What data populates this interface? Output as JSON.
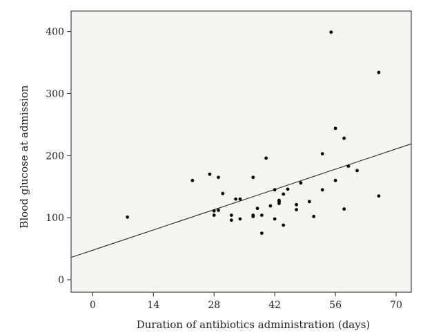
{
  "chart_data": {
    "type": "scatter",
    "title": "",
    "xlabel": "Duration of antibiotics administration (days)",
    "ylabel": "Blood glucose at admission",
    "xlim": [
      -5,
      73.5
    ],
    "ylim": [
      -20,
      433
    ],
    "x_ticks": [
      0,
      14,
      28,
      42,
      56,
      70
    ],
    "y_ticks": [
      0,
      100,
      200,
      300,
      400
    ],
    "grid": false,
    "legend": "none",
    "plot_background": "#f5f5f2",
    "point_color": "#000000",
    "series": [
      {
        "points": [
          [
            8,
            101
          ],
          [
            23,
            160
          ],
          [
            27,
            170
          ],
          [
            28,
            111
          ],
          [
            28,
            104
          ],
          [
            29,
            165
          ],
          [
            29,
            112
          ],
          [
            30,
            139
          ],
          [
            32,
            104
          ],
          [
            32,
            96
          ],
          [
            33,
            130
          ],
          [
            34,
            130
          ],
          [
            34,
            98
          ],
          [
            37,
            165
          ],
          [
            37,
            104
          ],
          [
            37,
            102
          ],
          [
            38,
            115
          ],
          [
            39,
            104
          ],
          [
            39,
            75
          ],
          [
            40,
            196
          ],
          [
            41,
            119
          ],
          [
            42,
            145
          ],
          [
            42,
            98
          ],
          [
            43,
            128
          ],
          [
            43,
            126
          ],
          [
            43,
            123
          ],
          [
            44,
            138
          ],
          [
            44,
            88
          ],
          [
            45,
            146
          ],
          [
            47,
            121
          ],
          [
            47,
            113
          ],
          [
            48,
            156
          ],
          [
            50,
            126
          ],
          [
            51,
            102
          ],
          [
            53,
            203
          ],
          [
            53,
            145
          ],
          [
            55,
            399
          ],
          [
            56,
            244
          ],
          [
            56,
            160
          ],
          [
            58,
            228
          ],
          [
            58,
            114
          ],
          [
            59,
            183
          ],
          [
            61,
            176
          ],
          [
            66,
            334
          ],
          [
            66,
            135
          ]
        ]
      }
    ],
    "fit_line": {
      "x": [
        -5,
        73.5
      ],
      "y": [
        36,
        219
      ]
    }
  }
}
